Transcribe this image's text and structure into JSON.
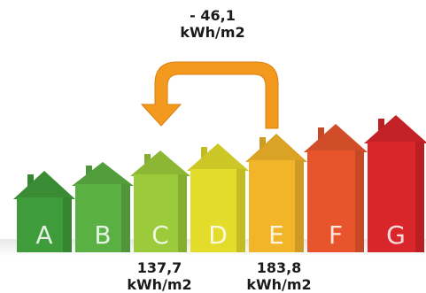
{
  "diagram": {
    "classes": [
      {
        "letter": "A",
        "color": "#3f9c3a"
      },
      {
        "letter": "B",
        "color": "#5bb043"
      },
      {
        "letter": "C",
        "color": "#9bcb3b"
      },
      {
        "letter": "D",
        "color": "#e3dc2a"
      },
      {
        "letter": "E",
        "color": "#f2b52a"
      },
      {
        "letter": "F",
        "color": "#e8542c"
      },
      {
        "letter": "G",
        "color": "#d9262a"
      }
    ],
    "saving": {
      "value": "- 46,1",
      "unit": "kWh/m2"
    },
    "from_class": {
      "value": "183,8",
      "unit": "kWh/m2"
    },
    "to_class": {
      "value": "137,7",
      "unit": "kWh/m2"
    },
    "arrow_color": "#f39a1e"
  }
}
